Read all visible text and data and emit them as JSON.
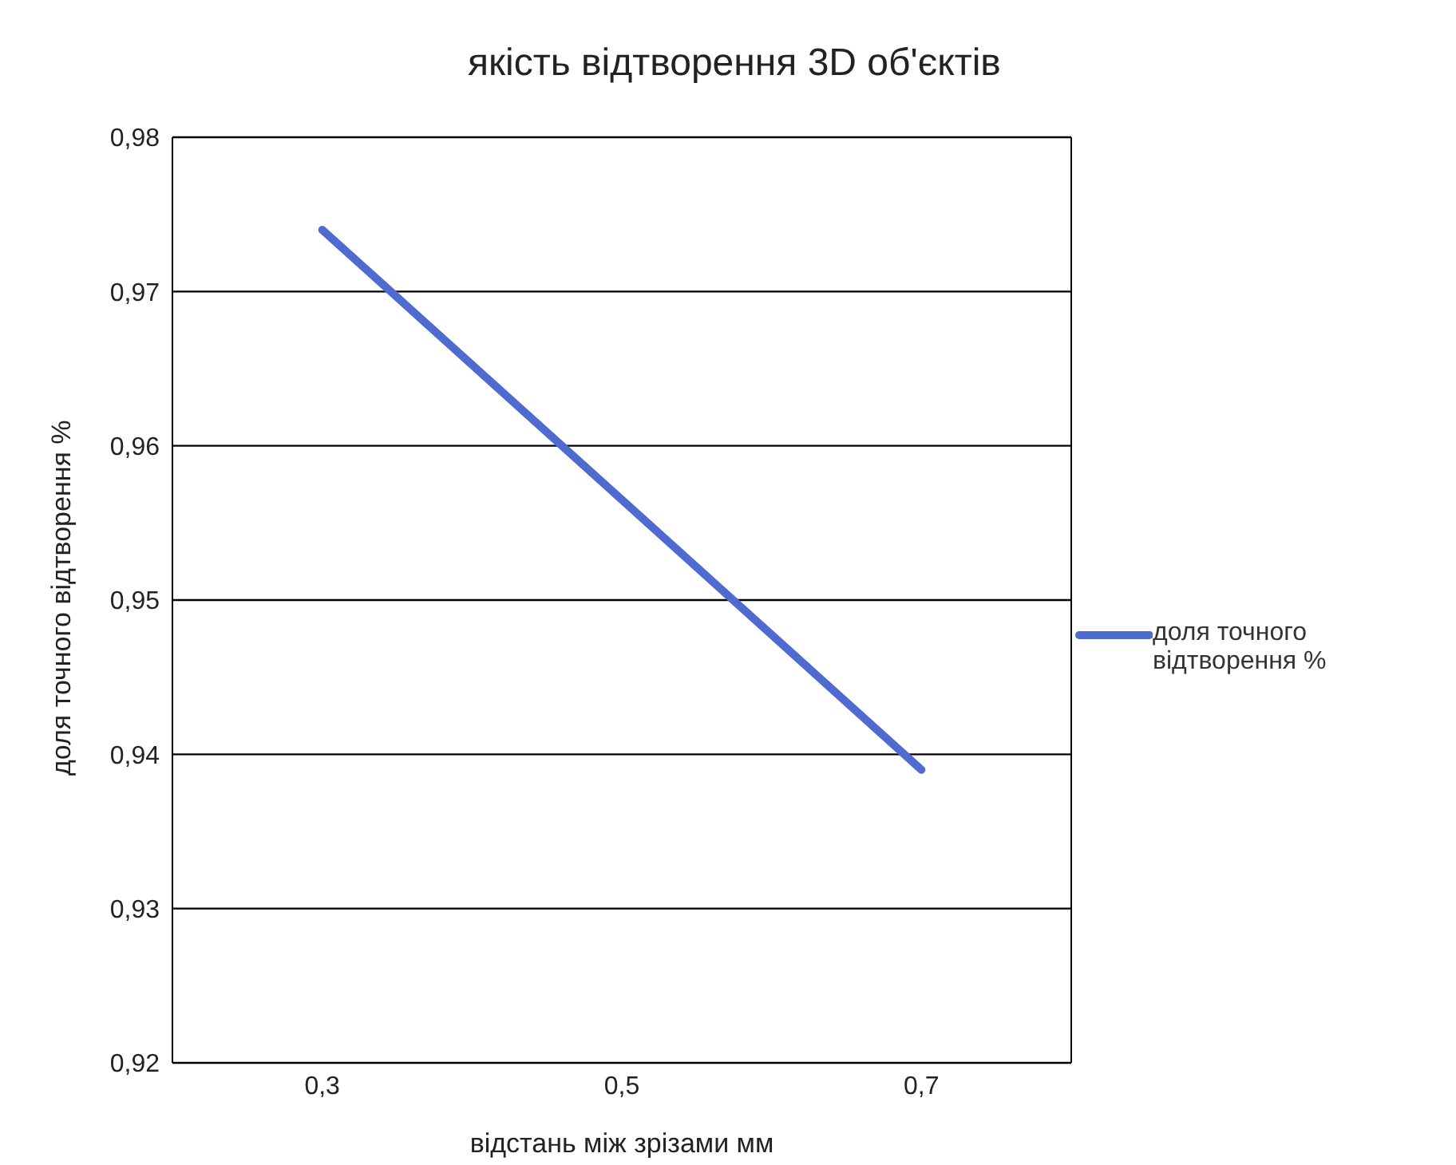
{
  "chart_data": {
    "type": "line",
    "title": "якість відтворення 3D об'єктів",
    "xlabel": "відстань між зрізами мм",
    "ylabel": "доля точного відтворення %",
    "categories": [
      "0,3",
      "0,5",
      "0,7"
    ],
    "series": [
      {
        "name": "доля точного відтворення %",
        "color": "#4f6bd0",
        "values": [
          0.974,
          0.9565,
          0.939
        ]
      }
    ],
    "ylim": [
      0.92,
      0.98
    ],
    "yticks": [
      {
        "value": 0.92,
        "label": "0,92"
      },
      {
        "value": 0.93,
        "label": "0,93"
      },
      {
        "value": 0.94,
        "label": "0,94"
      },
      {
        "value": 0.95,
        "label": "0,95"
      },
      {
        "value": 0.96,
        "label": "0,96"
      },
      {
        "value": 0.97,
        "label": "0,97"
      },
      {
        "value": 0.98,
        "label": "0,98"
      }
    ],
    "grid": "y",
    "legend": "right",
    "marker": "none",
    "line_style": "solid"
  }
}
